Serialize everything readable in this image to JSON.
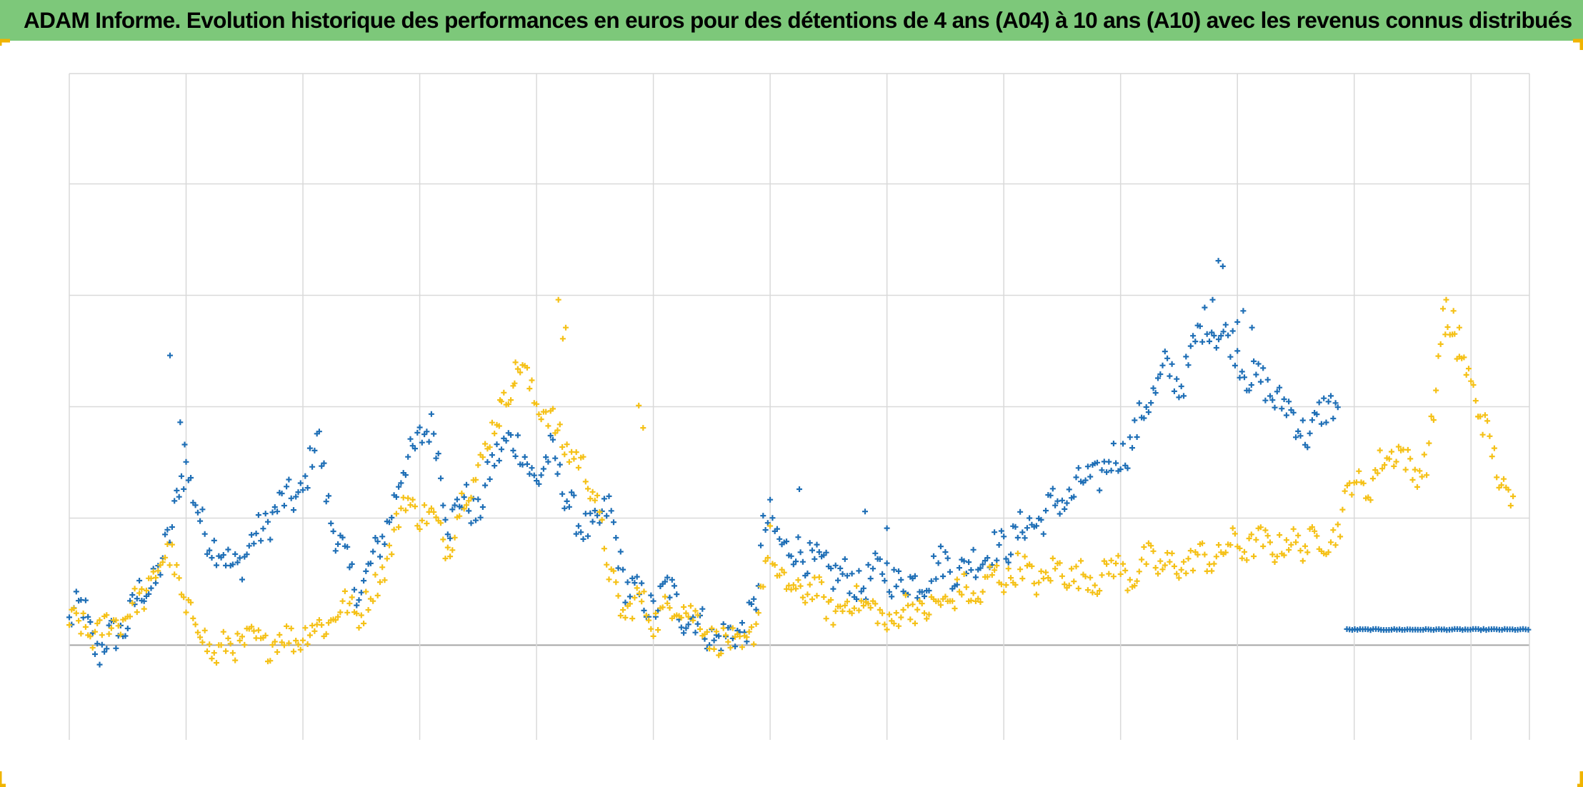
{
  "colors": {
    "title_bar": "#7dc87a",
    "series_a04": "#1f6fb6",
    "series_a10": "#f5c117",
    "grid": "#d9d9d9",
    "axis": "#a6a6a6",
    "corner_marks": "#f0b400"
  },
  "chart_data": {
    "type": "scatter",
    "title": "ADAM Informe. Evolution historique des performances en euros pour des détentions de 4 ans (A04) à 10 ans (A10) avec les revenus connus distribués",
    "xlabel": "",
    "ylabel": "",
    "marker": "plus",
    "grid": true,
    "legend": "none",
    "x_tick_labels_visible": false,
    "y_tick_labels_visible": false,
    "xlim": [
      0,
      100
    ],
    "ylim": [
      -0.85,
      5.13
    ],
    "y_gridlines": [
      0,
      1.14,
      2.14,
      3.14,
      4.14,
      5.13
    ],
    "x_gridlines": [
      0,
      8,
      16,
      24,
      32,
      40,
      48,
      56,
      64,
      72,
      80,
      88,
      96,
      100
    ],
    "series": [
      {
        "key": "a04",
        "color": "#1f6fb6",
        "anchors": [
          [
            0,
            0.2
          ],
          [
            1,
            0.35
          ],
          [
            2,
            -0.1
          ],
          [
            3,
            0.1
          ],
          [
            4,
            0.2
          ],
          [
            5,
            0.5
          ],
          [
            6,
            0.6
          ],
          [
            7,
            1.0
          ],
          [
            7.5,
            1.5
          ],
          [
            8,
            1.6
          ],
          [
            8.5,
            1.3
          ],
          [
            9,
            1.1
          ],
          [
            10,
            0.9
          ],
          [
            11,
            0.7
          ],
          [
            12,
            0.8
          ],
          [
            13,
            1.0
          ],
          [
            14,
            1.2
          ],
          [
            15,
            1.3
          ],
          [
            16,
            1.4
          ],
          [
            16.5,
            1.6
          ],
          [
            17,
            1.9
          ],
          [
            18,
            1.1
          ],
          [
            19,
            0.7
          ],
          [
            20,
            0.5
          ],
          [
            21,
            0.8
          ],
          [
            22,
            1.2
          ],
          [
            23,
            1.6
          ],
          [
            24,
            1.9
          ],
          [
            25,
            1.9
          ],
          [
            26,
            1.1
          ],
          [
            27,
            1.3
          ],
          [
            28,
            1.2
          ],
          [
            29,
            1.6
          ],
          [
            30,
            1.9
          ],
          [
            31,
            1.7
          ],
          [
            32,
            1.5
          ],
          [
            33,
            1.7
          ],
          [
            34,
            1.4
          ],
          [
            35,
            1.0
          ],
          [
            36,
            1.1
          ],
          [
            37,
            1.2
          ],
          [
            38,
            0.6
          ],
          [
            39,
            0.4
          ],
          [
            40,
            0.35
          ],
          [
            41,
            0.5
          ],
          [
            42,
            0.3
          ],
          [
            43,
            0.2
          ],
          [
            44,
            0.1
          ],
          [
            45,
            0.05
          ],
          [
            46,
            0.15
          ],
          [
            47,
            0.3
          ],
          [
            47.5,
            1.0
          ],
          [
            48,
            1.2
          ],
          [
            49,
            0.8
          ],
          [
            50,
            0.9
          ],
          [
            51,
            0.7
          ],
          [
            52,
            0.7
          ],
          [
            53,
            0.6
          ],
          [
            54,
            0.55
          ],
          [
            55,
            0.6
          ],
          [
            56,
            0.7
          ],
          [
            57,
            0.5
          ],
          [
            58,
            0.6
          ],
          [
            59,
            0.6
          ],
          [
            60,
            0.8
          ],
          [
            61,
            0.6
          ],
          [
            62,
            0.8
          ],
          [
            63,
            0.8
          ],
          [
            64,
            0.9
          ],
          [
            65,
            1.0
          ],
          [
            66,
            1.1
          ],
          [
            67,
            1.2
          ],
          [
            68,
            1.3
          ],
          [
            69,
            1.4
          ],
          [
            70,
            1.5
          ],
          [
            71,
            1.6
          ],
          [
            72,
            1.7
          ],
          [
            73,
            1.9
          ],
          [
            74,
            2.2
          ],
          [
            75,
            2.5
          ],
          [
            76,
            2.3
          ],
          [
            77,
            2.7
          ],
          [
            78,
            2.9
          ],
          [
            79,
            2.8
          ],
          [
            80,
            2.6
          ],
          [
            81,
            2.4
          ],
          [
            82,
            2.3
          ],
          [
            83,
            2.2
          ],
          [
            84,
            2.0
          ],
          [
            85,
            1.9
          ],
          [
            86,
            2.1
          ],
          [
            86.5,
            2.2
          ],
          [
            87,
            2.2
          ]
        ],
        "baseline_segment": {
          "x_start": 87.5,
          "x_end": 100,
          "y": 0.14
        },
        "outliers": [
          [
            6.9,
            2.6
          ],
          [
            7.6,
            2.0
          ],
          [
            7.9,
            1.8
          ],
          [
            78.3,
            3.1
          ],
          [
            78.7,
            3.45
          ],
          [
            79.0,
            3.4
          ],
          [
            80.0,
            2.9
          ],
          [
            80.4,
            3.0
          ],
          [
            81.0,
            2.85
          ],
          [
            50.0,
            1.4
          ],
          [
            54.5,
            1.2
          ],
          [
            56.0,
            1.05
          ]
        ]
      },
      {
        "key": "a10",
        "color": "#f5c117",
        "anchors": [
          [
            0,
            0.2
          ],
          [
            2,
            0.1
          ],
          [
            4,
            0.3
          ],
          [
            5,
            0.4
          ],
          [
            6,
            0.7
          ],
          [
            7,
            0.8
          ],
          [
            7.5,
            0.6
          ],
          [
            8,
            0.3
          ],
          [
            9,
            0.15
          ],
          [
            10,
            -0.1
          ],
          [
            11,
            0.0
          ],
          [
            12,
            0.05
          ],
          [
            13,
            0.0
          ],
          [
            14,
            0.05
          ],
          [
            15,
            0.05
          ],
          [
            16,
            0.1
          ],
          [
            17,
            0.15
          ],
          [
            18,
            0.25
          ],
          [
            19,
            0.35
          ],
          [
            20,
            0.3
          ],
          [
            21,
            0.5
          ],
          [
            22,
            0.9
          ],
          [
            23,
            1.3
          ],
          [
            24,
            1.2
          ],
          [
            25,
            1.1
          ],
          [
            26,
            0.9
          ],
          [
            27,
            1.3
          ],
          [
            28,
            1.6
          ],
          [
            29,
            1.9
          ],
          [
            30,
            2.3
          ],
          [
            31,
            2.5
          ],
          [
            32,
            2.2
          ],
          [
            33,
            2.0
          ],
          [
            34,
            1.8
          ],
          [
            35,
            1.6
          ],
          [
            36,
            1.4
          ],
          [
            37,
            0.6
          ],
          [
            38,
            0.3
          ],
          [
            39,
            0.4
          ],
          [
            40,
            0.25
          ],
          [
            41,
            0.3
          ],
          [
            42,
            0.4
          ],
          [
            43,
            0.2
          ],
          [
            44,
            0.1
          ],
          [
            45,
            0.0
          ],
          [
            46,
            0.0
          ],
          [
            47,
            0.1
          ],
          [
            47.5,
            0.6
          ],
          [
            48,
            1.0
          ],
          [
            48.5,
            0.6
          ],
          [
            49,
            0.5
          ],
          [
            50,
            0.5
          ],
          [
            51,
            0.5
          ],
          [
            52,
            0.35
          ],
          [
            53,
            0.3
          ],
          [
            54,
            0.45
          ],
          [
            55,
            0.3
          ],
          [
            56,
            0.2
          ],
          [
            57,
            0.3
          ],
          [
            58,
            0.35
          ],
          [
            59,
            0.3
          ],
          [
            60,
            0.4
          ],
          [
            61,
            0.5
          ],
          [
            62,
            0.4
          ],
          [
            63,
            0.6
          ],
          [
            64,
            0.6
          ],
          [
            65,
            0.7
          ],
          [
            66,
            0.6
          ],
          [
            67,
            0.6
          ],
          [
            68,
            0.7
          ],
          [
            69,
            0.6
          ],
          [
            70,
            0.6
          ],
          [
            71,
            0.65
          ],
          [
            72,
            0.7
          ],
          [
            73,
            0.6
          ],
          [
            74,
            0.8
          ],
          [
            75,
            0.7
          ],
          [
            76,
            0.7
          ],
          [
            77,
            0.8
          ],
          [
            78,
            0.75
          ],
          [
            79,
            0.85
          ],
          [
            80,
            0.9
          ],
          [
            81,
            0.9
          ],
          [
            82,
            0.9
          ],
          [
            83,
            0.9
          ],
          [
            84,
            0.9
          ],
          [
            85,
            0.95
          ],
          [
            86,
            0.9
          ],
          [
            87,
            1.1
          ],
          [
            88,
            1.5
          ],
          [
            89,
            1.4
          ],
          [
            90,
            1.65
          ],
          [
            91,
            1.8
          ],
          [
            92,
            1.5
          ],
          [
            93,
            1.7
          ],
          [
            93.5,
            2.1
          ],
          [
            94,
            2.9
          ],
          [
            95,
            2.7
          ],
          [
            96,
            2.3
          ],
          [
            97,
            2.0
          ],
          [
            98,
            1.4
          ],
          [
            99,
            1.3
          ]
        ],
        "outliers": [
          [
            33.5,
            3.1
          ],
          [
            34.0,
            2.85
          ],
          [
            33.8,
            2.75
          ],
          [
            39.0,
            2.15
          ],
          [
            39.3,
            1.95
          ],
          [
            94.3,
            3.1
          ],
          [
            94.8,
            3.0
          ],
          [
            95.2,
            2.85
          ],
          [
            96.5,
            2.05
          ],
          [
            29.5,
            2.2
          ],
          [
            30.5,
            2.35
          ]
        ]
      }
    ]
  }
}
